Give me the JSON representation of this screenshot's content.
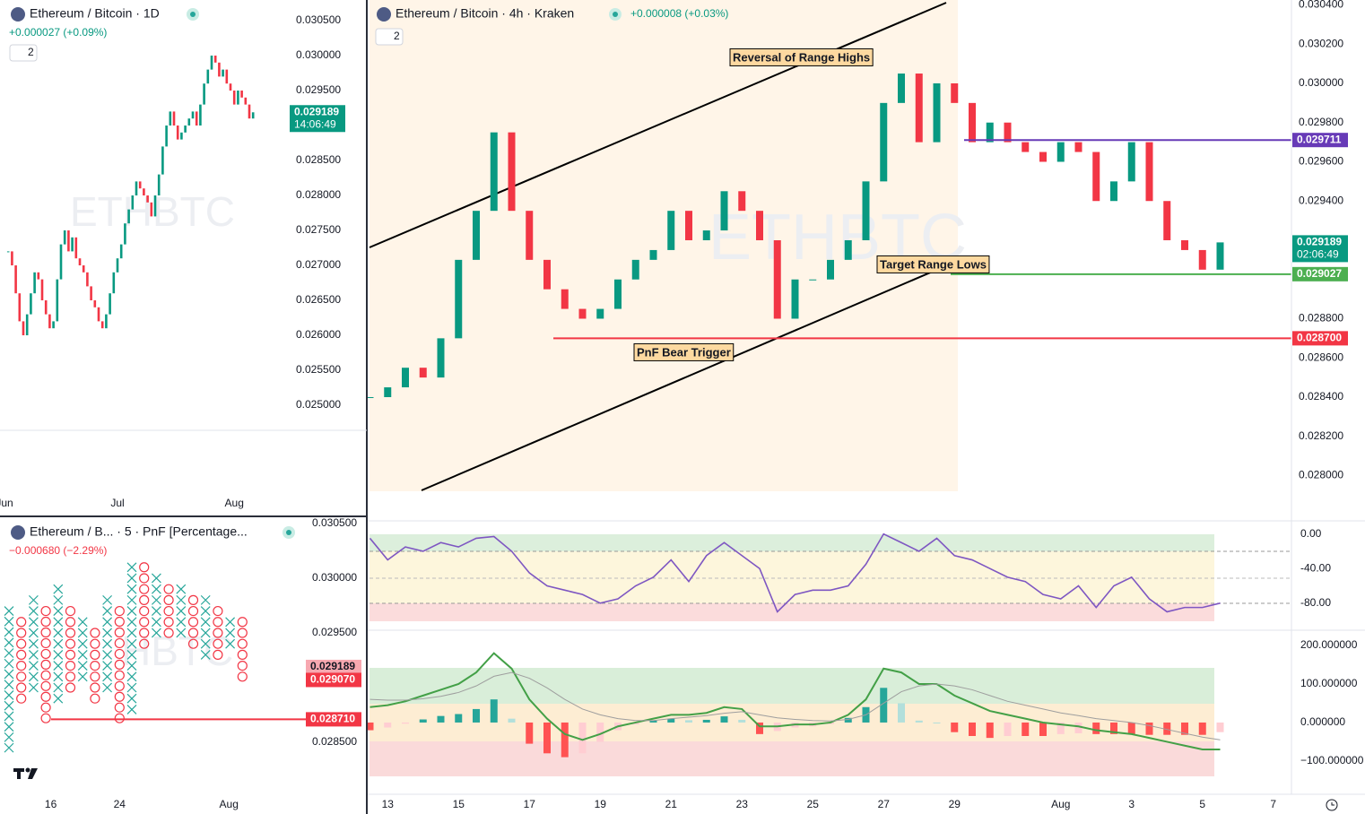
{
  "chart_data": [
    {
      "type": "candlestick",
      "title": "Ethereum / Bitcoin · 1D",
      "subtitle": "+0.000027 (+0.09%)",
      "layout_count": "2",
      "watermark": "ETHBTC",
      "up_color": "#089981",
      "down_color": "#f23645",
      "values": [
        0.0272,
        0.027,
        0.0266,
        0.0262,
        0.026,
        0.0263,
        0.0266,
        0.0269,
        0.0268,
        0.0265,
        0.0263,
        0.0261,
        0.0262,
        0.0268,
        0.0273,
        0.0275,
        0.0272,
        0.0274,
        0.0271,
        0.027,
        0.0269,
        0.0267,
        0.0265,
        0.0264,
        0.0262,
        0.0261,
        0.0263,
        0.0266,
        0.0269,
        0.0271,
        0.0273,
        0.0276,
        0.0278,
        0.028,
        0.0282,
        0.0281,
        0.028,
        0.0279,
        0.0277,
        0.028,
        0.0283,
        0.0287,
        0.029,
        0.0292,
        0.029,
        0.0288,
        0.0289,
        0.029,
        0.0291,
        0.0292,
        0.029,
        0.0293,
        0.0296,
        0.0298,
        0.03,
        0.0299,
        0.0297,
        0.0298,
        0.0296,
        0.0295,
        0.0293,
        0.0295,
        0.0294,
        0.0293,
        0.0291,
        0.029189
      ],
      "ylim": [
        0.024641,
        0.030795
      ],
      "yticks": [
        {
          "value": 0.0305,
          "label": "0.030500"
        },
        {
          "value": 0.03,
          "label": "0.030000"
        },
        {
          "value": 0.0295,
          "label": "0.029500"
        },
        {
          "value": 0.0285,
          "label": "0.028500"
        },
        {
          "value": 0.028,
          "label": "0.028000"
        },
        {
          "value": 0.0275,
          "label": "0.027500"
        },
        {
          "value": 0.027,
          "label": "0.027000"
        },
        {
          "value": 0.0265,
          "label": "0.026500"
        },
        {
          "value": 0.026,
          "label": "0.026000"
        },
        {
          "value": 0.0255,
          "label": "0.025500"
        },
        {
          "value": 0.025,
          "label": "0.025000"
        }
      ],
      "xticks": [
        {
          "value": -1,
          "label": "Jun"
        },
        {
          "value": 29,
          "label": "Jul"
        },
        {
          "value": 60,
          "label": "Aug"
        }
      ],
      "price_labels": [
        {
          "value": 0.029189,
          "label": "0.029189",
          "countdown": "14:06:49",
          "color": "#089981"
        }
      ]
    },
    {
      "type": "pnf",
      "title": "Ethereum / B... · 5 · PnF [Percentage...",
      "subtitle": "−0.000680 (−2.29%)",
      "watermark": "HBTC",
      "x_color": "#26a69a",
      "o_color": "#f23645",
      "columns": [
        {
          "kind": "X",
          "high": 0.0297,
          "low": 0.02845
        },
        {
          "kind": "O",
          "high": 0.0296,
          "low": 0.0289
        },
        {
          "kind": "X",
          "high": 0.0298,
          "low": 0.029
        },
        {
          "kind": "O",
          "high": 0.0297,
          "low": 0.02872
        },
        {
          "kind": "X",
          "high": 0.0299,
          "low": 0.0289
        },
        {
          "kind": "O",
          "high": 0.0297,
          "low": 0.029
        },
        {
          "kind": "X",
          "high": 0.0296,
          "low": 0.0291
        },
        {
          "kind": "O",
          "high": 0.0295,
          "low": 0.0289
        },
        {
          "kind": "X",
          "high": 0.0298,
          "low": 0.029
        },
        {
          "kind": "O",
          "high": 0.0297,
          "low": 0.02872
        },
        {
          "kind": "X",
          "high": 0.0301,
          "low": 0.0288
        },
        {
          "kind": "O",
          "high": 0.0301,
          "low": 0.0294
        },
        {
          "kind": "X",
          "high": 0.03,
          "low": 0.0295
        },
        {
          "kind": "O",
          "high": 0.0299,
          "low": 0.0295
        },
        {
          "kind": "X",
          "high": 0.0299,
          "low": 0.0295
        },
        {
          "kind": "O",
          "high": 0.0298,
          "low": 0.0294
        },
        {
          "kind": "X",
          "high": 0.0298,
          "low": 0.0293
        },
        {
          "kind": "O",
          "high": 0.0297,
          "low": 0.0293
        },
        {
          "kind": "X",
          "high": 0.0296,
          "low": 0.0294
        },
        {
          "kind": "O",
          "high": 0.0296,
          "low": 0.0291
        }
      ],
      "ylim": [
        0.028033,
        0.030557
      ],
      "yticks": [
        {
          "value": 0.0305,
          "label": "0.030500"
        },
        {
          "value": 0.03,
          "label": "0.030000"
        },
        {
          "value": 0.0295,
          "label": "0.029500"
        },
        {
          "value": 0.0285,
          "label": "0.028500"
        }
      ],
      "xticks": [
        {
          "value": 3.4,
          "label": "16"
        },
        {
          "value": 9,
          "label": "24"
        },
        {
          "value": 17.9,
          "label": "Aug"
        }
      ],
      "price_labels": [
        {
          "value": 0.029189,
          "label": "0.029189",
          "color": "#f7a8b0"
        },
        {
          "value": 0.02907,
          "label": "0.029070",
          "color": "#f23645"
        }
      ],
      "levels": [
        {
          "value": 0.02871,
          "label": "0.028710",
          "color": "#f23645"
        }
      ]
    },
    {
      "type": "candlestick",
      "title": "Ethereum / Bitcoin · 4h · Kraken",
      "subtitle": "+0.000008 (+0.03%)",
      "layout_count": "2",
      "watermark": "ETHBTC",
      "up_color": "#089981",
      "down_color": "#f23645",
      "values": [
        0.0284,
        0.02845,
        0.02855,
        0.0285,
        0.0287,
        0.0291,
        0.02935,
        0.02975,
        0.02935,
        0.0291,
        0.02895,
        0.02885,
        0.0288,
        0.02885,
        0.029,
        0.0291,
        0.02915,
        0.02935,
        0.0292,
        0.02925,
        0.02945,
        0.02935,
        0.0292,
        0.0288,
        0.029,
        0.029,
        0.0291,
        0.0292,
        0.0295,
        0.0299,
        0.03005,
        0.0297,
        0.03,
        0.0299,
        0.0297,
        0.0298,
        0.0297,
        0.02965,
        0.0296,
        0.0297,
        0.02965,
        0.0294,
        0.0295,
        0.0297,
        0.0294,
        0.0292,
        0.02915,
        0.02905,
        0.029189
      ],
      "ylim": [
        0.02792,
        0.030425
      ],
      "yticks": [
        {
          "value": 0.0304,
          "label": "0.030400"
        },
        {
          "value": 0.0302,
          "label": "0.030200"
        },
        {
          "value": 0.03,
          "label": "0.030000"
        },
        {
          "value": 0.0298,
          "label": "0.029800"
        },
        {
          "value": 0.0296,
          "label": "0.029600"
        },
        {
          "value": 0.0294,
          "label": "0.029400"
        },
        {
          "value": 0.0288,
          "label": "0.028800"
        },
        {
          "value": 0.0286,
          "label": "0.028600"
        },
        {
          "value": 0.0284,
          "label": "0.028400"
        },
        {
          "value": 0.0282,
          "label": "0.028200"
        },
        {
          "value": 0.028,
          "label": "0.028000"
        }
      ],
      "xticks": [
        {
          "value": 1,
          "label": "13"
        },
        {
          "value": 5,
          "label": "15"
        },
        {
          "value": 9,
          "label": "17"
        },
        {
          "value": 13,
          "label": "19"
        },
        {
          "value": 17,
          "label": "21"
        },
        {
          "value": 21,
          "label": "23"
        },
        {
          "value": 25,
          "label": "25"
        },
        {
          "value": 29,
          "label": "27"
        },
        {
          "value": 33,
          "label": "29"
        },
        {
          "value": 39,
          "label": "Aug"
        },
        {
          "value": 43,
          "label": "3"
        },
        {
          "value": 47,
          "label": "5"
        },
        {
          "value": 51,
          "label": "7"
        }
      ],
      "price_labels": [
        {
          "value": 0.029189,
          "label": "0.029189",
          "countdown": "02:06:49",
          "color": "#089981"
        }
      ],
      "levels": [
        {
          "value": 0.029711,
          "label": "0.029711",
          "color": "#673ab7"
        },
        {
          "value": 0.029027,
          "label": "0.029027",
          "color": "#4caf50"
        },
        {
          "value": 0.0287,
          "label": "0.028700",
          "color": "#f23645"
        }
      ],
      "annotations": [
        "Reversal of Range Highs",
        "Target Range Lows",
        "PnF Bear Trigger"
      ]
    },
    {
      "type": "line",
      "color": "#7e57c2",
      "values": [
        -5,
        -30,
        -15,
        -20,
        -10,
        -15,
        -5,
        -3,
        -20,
        -45,
        -60,
        -65,
        -70,
        -80,
        -75,
        -60,
        -50,
        -30,
        -55,
        -25,
        -10,
        -25,
        -40,
        -90,
        -70,
        -65,
        -65,
        -60,
        -35,
        0,
        -10,
        -20,
        -5,
        -25,
        -30,
        -40,
        -50,
        -55,
        -70,
        -75,
        -60,
        -85,
        -60,
        -50,
        -75,
        -90,
        -85,
        -85,
        -80
      ],
      "ylim": [
        -103,
        11
      ],
      "yticks": [
        {
          "value": 0,
          "label": "0.00"
        },
        {
          "value": -40,
          "label": "-40.00"
        },
        {
          "value": -80,
          "label": "-80.00"
        }
      ]
    },
    {
      "type": "macd",
      "lines": [
        {
          "color": "#43a047",
          "values": [
            40,
            45,
            55,
            70,
            85,
            100,
            130,
            180,
            140,
            60,
            10,
            -30,
            -45,
            -30,
            -10,
            0,
            10,
            20,
            20,
            25,
            40,
            35,
            -10,
            -10,
            -5,
            -5,
            0,
            20,
            60,
            140,
            130,
            100,
            100,
            70,
            50,
            30,
            20,
            10,
            0,
            -5,
            -10,
            -20,
            -25,
            -30,
            -40,
            -50,
            -60,
            -70,
            -70
          ]
        },
        {
          "color": "#9e9e9e",
          "values": [
            60,
            58,
            58,
            62,
            68,
            78,
            95,
            120,
            130,
            115,
            90,
            60,
            35,
            20,
            10,
            5,
            5,
            10,
            14,
            18,
            24,
            28,
            20,
            12,
            8,
            5,
            4,
            8,
            20,
            50,
            80,
            95,
            100,
            95,
            85,
            70,
            55,
            45,
            35,
            25,
            18,
            10,
            5,
            0,
            -8,
            -18,
            -28,
            -38,
            -45
          ]
        }
      ],
      "histogram": [
        -20,
        -13,
        -3,
        8,
        17,
        22,
        35,
        60,
        10,
        -55,
        -80,
        -90,
        -80,
        -50,
        -20,
        -5,
        5,
        10,
        6,
        7,
        16,
        7,
        -30,
        -22,
        -13,
        -10,
        -4,
        12,
        40,
        90,
        50,
        5,
        0,
        -25,
        -35,
        -40,
        -35,
        -35,
        -35,
        -30,
        -28,
        -30,
        -30,
        -30,
        -32,
        -32,
        -32,
        -32,
        -25
      ],
      "ylim": [
        -184,
        235
      ],
      "yticks": [
        {
          "value": 200,
          "label": "200.000000"
        },
        {
          "value": 100,
          "label": "100.000000"
        },
        {
          "value": 0,
          "label": "0.000000"
        },
        {
          "value": -100,
          "label": "−100.000000"
        }
      ]
    }
  ]
}
